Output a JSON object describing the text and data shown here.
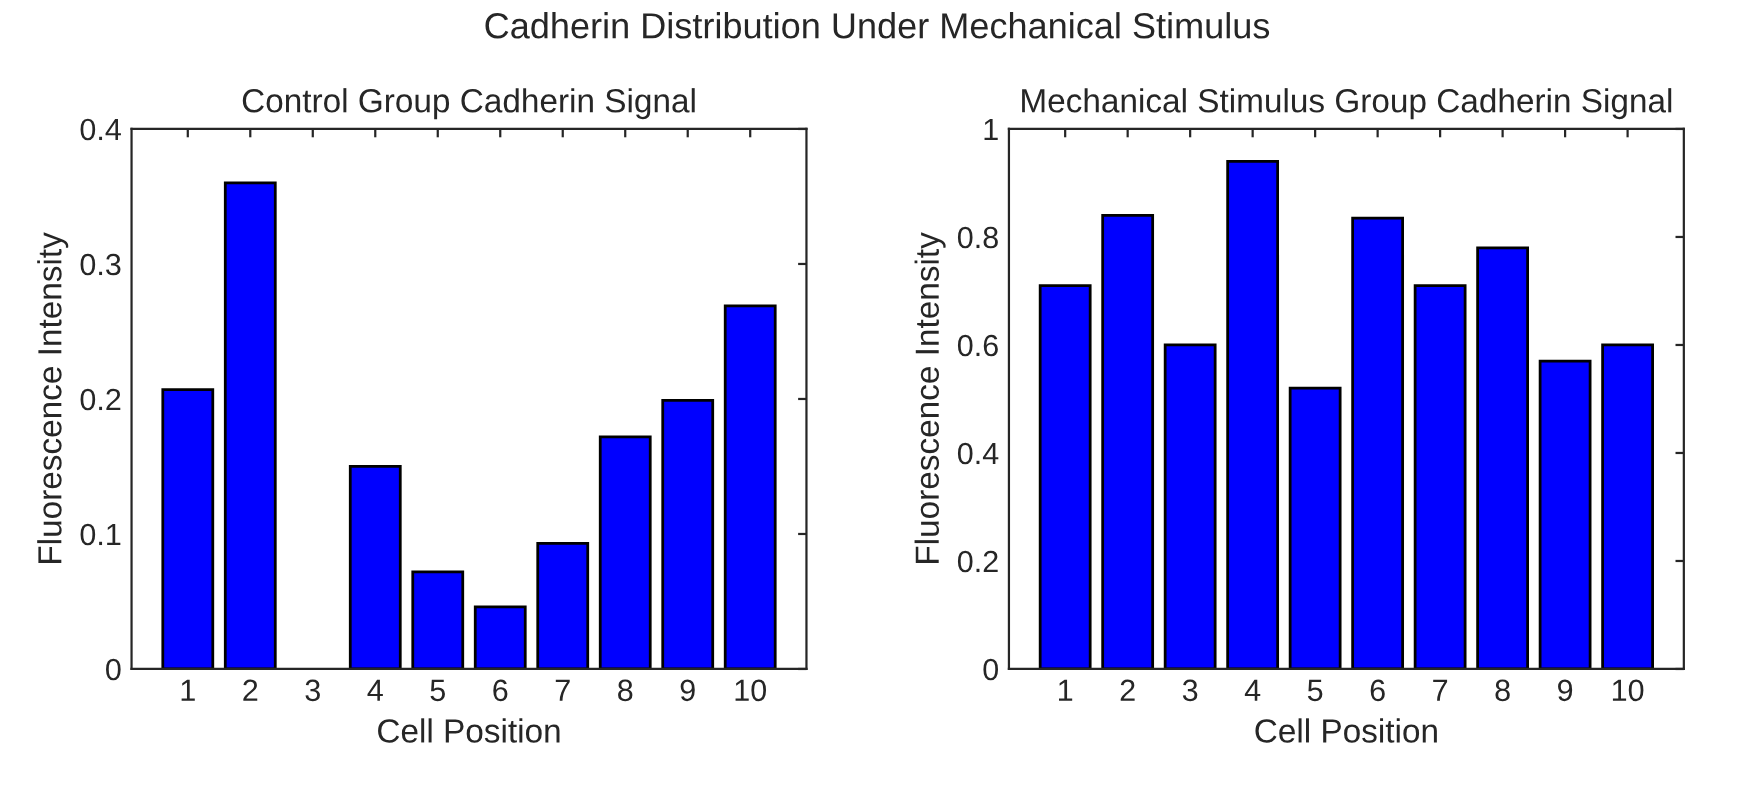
{
  "chart_data": [
    {
      "type": "bar",
      "title": "Control Group Cadherin Signal",
      "annotations": [
        "Cadherin Distribution Under Mechanical Stimulus"
      ],
      "xlabel": "Cell Position",
      "ylabel": "Fluorescence Intensity",
      "categories": [
        "1",
        "2",
        "3",
        "4",
        "5",
        "6",
        "7",
        "8",
        "9",
        "10"
      ],
      "values": [
        0.207,
        0.36,
        null,
        0.15,
        0.072,
        0.046,
        0.093,
        0.172,
        0.199,
        0.269
      ],
      "color": "#0000ff",
      "ylim": [
        0,
        0.4
      ],
      "yticks": [
        0,
        0.1,
        0.2,
        0.3,
        0.4
      ],
      "grid": false,
      "legend": false
    },
    {
      "type": "bar",
      "title": "Mechanical Stimulus Group Cadherin Signal",
      "xlabel": "Cell Position",
      "ylabel": "Fluorescence Intensity",
      "categories": [
        "1",
        "2",
        "3",
        "4",
        "5",
        "6",
        "7",
        "8",
        "9",
        "10"
      ],
      "values": [
        0.71,
        0.84,
        0.6,
        0.94,
        0.52,
        0.835,
        0.71,
        0.78,
        0.57,
        0.6
      ],
      "color": "#0000ff",
      "ylim": [
        0,
        1
      ],
      "yticks": [
        0,
        0.2,
        0.4,
        0.6,
        0.8,
        1
      ],
      "grid": false,
      "legend": false
    }
  ]
}
